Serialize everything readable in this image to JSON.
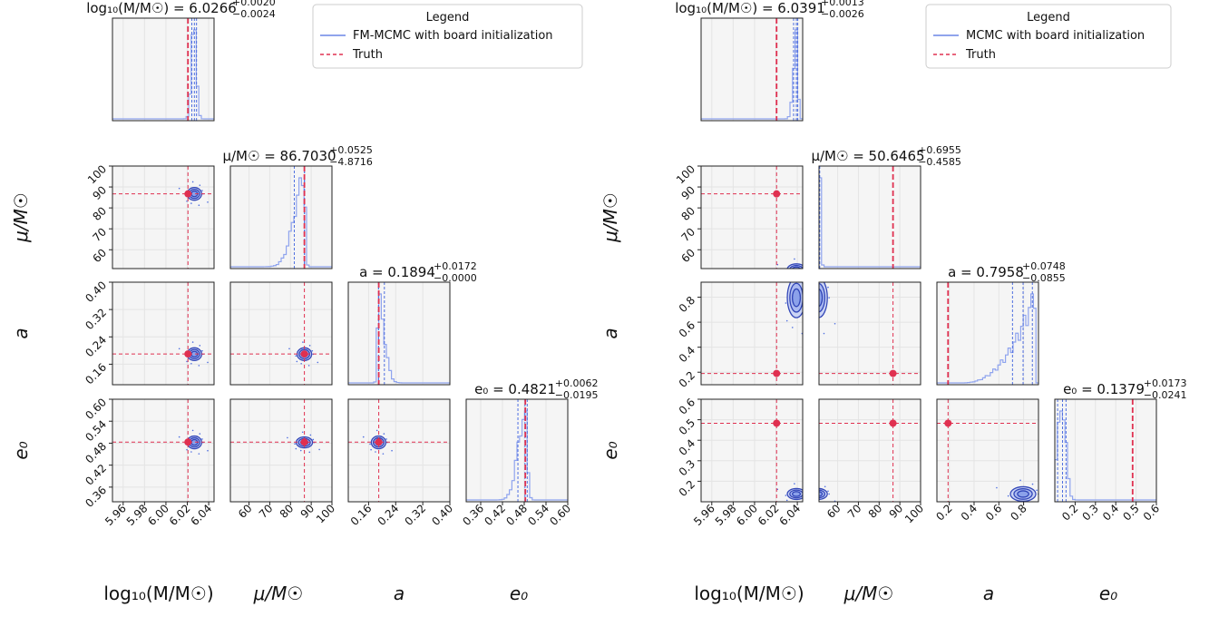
{
  "chart_data": [
    {
      "type": "corner",
      "panel": "left",
      "legend": {
        "title": "Legend",
        "entries": [
          {
            "label": "FM-MCMC with board initialization",
            "style": "line",
            "color": "#6b86e6"
          },
          {
            "label": "Truth",
            "style": "dashed",
            "color": "#e03050"
          }
        ]
      },
      "params": [
        {
          "symbol": "log10_M",
          "axis_label": "log₁₀(M/M☉)",
          "range": [
            5.95,
            6.045
          ],
          "ticks": [
            5.96,
            5.98,
            6.0,
            6.02,
            6.04
          ],
          "tick_labels": [
            "5.96",
            "5.98",
            "6.00",
            "6.02",
            "6.04"
          ],
          "truth": 6.0206,
          "median": 6.0266,
          "q16": 6.0242,
          "q84": 6.0286,
          "title_lhs": "log₁₀(M/M☉) = 6.0266",
          "title_plus": "+0.0020",
          "title_minus": "−0.0024"
        },
        {
          "symbol": "mu",
          "axis_label": "μ/M☉",
          "range": [
            51,
            100
          ],
          "ticks": [
            60,
            70,
            80,
            90,
            100
          ],
          "tick_labels": [
            "60",
            "70",
            "80",
            "90",
            "100"
          ],
          "truth": 86.7,
          "median": 86.703,
          "q16": 81.83,
          "q84": 86.76,
          "title_lhs": "μ/M☉ = 86.7030",
          "title_plus": "+0.0525",
          "title_minus": "−4.8716"
        },
        {
          "symbol": "a",
          "axis_label": "a",
          "range": [
            0.1,
            0.4
          ],
          "ticks": [
            0.16,
            0.24,
            0.32,
            0.4
          ],
          "tick_labels": [
            "0.16",
            "0.24",
            "0.32",
            "0.40"
          ],
          "truth": 0.19,
          "median": 0.1894,
          "q16": 0.1894,
          "q84": 0.2066,
          "title_lhs": "a = 0.1894",
          "title_plus": "+0.0172",
          "title_minus": "−0.0000"
        },
        {
          "symbol": "e0",
          "axis_label": "e₀",
          "range": [
            0.32,
            0.6
          ],
          "ticks": [
            0.36,
            0.42,
            0.48,
            0.54,
            0.6
          ],
          "tick_labels": [
            "0.36",
            "0.42",
            "0.48",
            "0.54",
            "0.60"
          ],
          "truth": 0.483,
          "median": 0.4821,
          "q16": 0.4626,
          "q84": 0.4883,
          "title_lhs": "e₀ = 0.4821",
          "title_plus": "+0.0062",
          "title_minus": "−0.0195"
        }
      ]
    },
    {
      "type": "corner",
      "panel": "right",
      "legend": {
        "title": "Legend",
        "entries": [
          {
            "label": "MCMC with board initialization",
            "style": "line",
            "color": "#6b86e6"
          },
          {
            "label": "Truth",
            "style": "dashed",
            "color": "#e03050"
          }
        ]
      },
      "params": [
        {
          "symbol": "log10_M",
          "axis_label": "log₁₀(M/M☉)",
          "range": [
            5.95,
            6.045
          ],
          "ticks": [
            5.96,
            5.98,
            6.0,
            6.02,
            6.04
          ],
          "tick_labels": [
            "5.96",
            "5.98",
            "6.00",
            "6.02",
            "6.04"
          ],
          "truth": 6.0206,
          "median": 6.0391,
          "q16": 6.0365,
          "q84": 6.0404,
          "title_lhs": "log₁₀(M/M☉) = 6.0391",
          "title_plus": "+0.0013",
          "title_minus": "−0.0026"
        },
        {
          "symbol": "mu",
          "axis_label": "μ/M☉",
          "range": [
            51,
            100
          ],
          "ticks": [
            60,
            70,
            80,
            90,
            100
          ],
          "tick_labels": [
            "60",
            "70",
            "80",
            "90",
            "100"
          ],
          "truth": 86.7,
          "median": 50.6465,
          "q16": 50.188,
          "q84": 51.342,
          "title_lhs": "μ/M☉ = 50.6465",
          "title_plus": "+0.6955",
          "title_minus": "−0.4585"
        },
        {
          "symbol": "a",
          "axis_label": "a",
          "range": [
            0.1,
            0.92
          ],
          "ticks": [
            0.2,
            0.4,
            0.6,
            0.8
          ],
          "tick_labels": [
            "0.2",
            "0.4",
            "0.6",
            "0.8"
          ],
          "truth": 0.19,
          "median": 0.7958,
          "q16": 0.7103,
          "q84": 0.8706,
          "title_lhs": "a = 0.7958",
          "title_plus": "+0.0748",
          "title_minus": "−0.0855"
        },
        {
          "symbol": "e0",
          "axis_label": "e₀",
          "range": [
            0.1,
            0.6
          ],
          "ticks": [
            0.2,
            0.3,
            0.4,
            0.5,
            0.6
          ],
          "tick_labels": [
            "0.2",
            "0.3",
            "0.4",
            "0.5",
            "0.6"
          ],
          "truth": 0.483,
          "median": 0.1379,
          "q16": 0.1138,
          "q84": 0.1552,
          "title_lhs": "e₀ = 0.1379",
          "title_plus": "+0.0173",
          "title_minus": "−0.0241"
        }
      ]
    }
  ]
}
